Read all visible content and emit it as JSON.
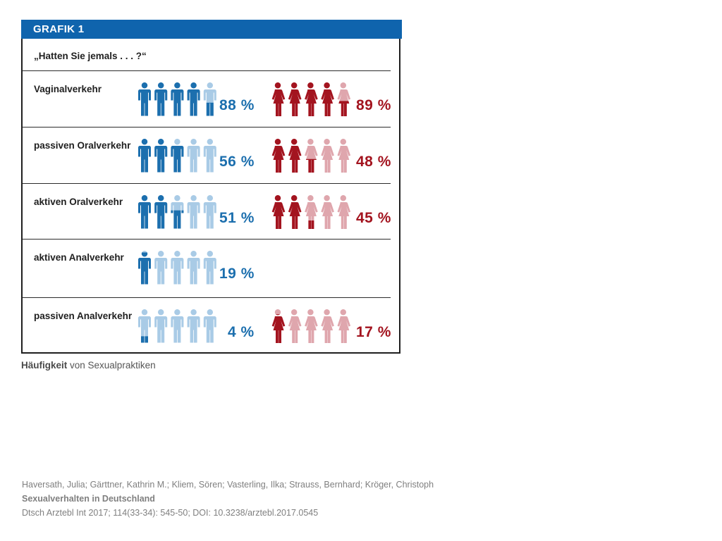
{
  "figure": {
    "header": "GRAFIK 1",
    "question": "„Hatten Sie jemals . . . ?“",
    "caption_bold": "Häufigkeit",
    "caption_rest": " von Sexualpraktiken"
  },
  "colors": {
    "male_dark": "#1c6fae",
    "male_light": "#a9cbe6",
    "female_dark": "#a3141f",
    "female_light": "#dfa6ad",
    "header_bg": "#0f64ad"
  },
  "chart_data": {
    "type": "pictogram",
    "icons_per_row": 5,
    "categories": [
      "Vaginalverkehr",
      "passiven Oralverkehr",
      "aktiven Oralverkehr",
      "aktiven Analverkehr",
      "passiven Analverkehr"
    ],
    "series": [
      {
        "group": "male",
        "values": [
          88,
          56,
          51,
          19,
          4
        ],
        "labels": [
          "88 %",
          "56 %",
          "51 %",
          "19 %",
          "4 %"
        ]
      },
      {
        "group": "female",
        "values": [
          89,
          48,
          45,
          null,
          17
        ],
        "labels": [
          "89 %",
          "48 %",
          "45 %",
          "",
          "17 %"
        ]
      }
    ]
  },
  "citation": {
    "authors": "Haversath, Julia; Gärttner, Kathrin M.; Kliem, Sören; Vasterling, Ilka; Strauss, Bernhard; Kröger, Christoph",
    "title": "Sexualverhalten in Deutschland",
    "source": "Dtsch Arztebl Int 2017; 114(33-34): 545-50; DOI: 10.3238/arztebl.2017.0545"
  }
}
